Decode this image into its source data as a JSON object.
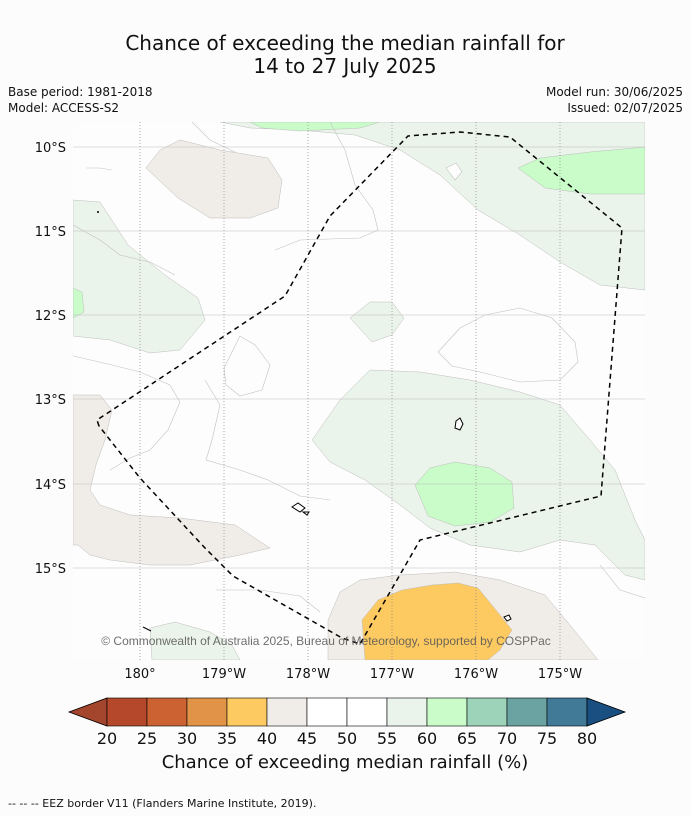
{
  "title_line1": "Chance of exceeding the median rainfall for",
  "title_line2": "14 to 27 July 2025",
  "base_period": "Base period: 1981-2018",
  "model": "Model: ACCESS-S2",
  "model_run": "Model run: 30/06/2025",
  "issued": "Issued: 02/07/2025",
  "lat_labels": [
    "10°S",
    "11°S",
    "12°S",
    "13°S",
    "14°S",
    "15°S"
  ],
  "lon_labels": [
    "180°",
    "179°W",
    "178°W",
    "177°W",
    "176°W",
    "175°W"
  ],
  "copyright": "© Commonwealth of Australia 2025, Bureau of Meteorology, supported by COSPPac",
  "colorbar": {
    "title": "Chance of exceeding median rainfall (%)",
    "ticks": [
      "20",
      "25",
      "30",
      "35",
      "40",
      "45",
      "50",
      "55",
      "60",
      "65",
      "70",
      "75",
      "80"
    ],
    "colors": [
      "#a4452d",
      "#b5482a",
      "#cc6232",
      "#e19447",
      "#fdc961",
      "#f0ece7",
      "#ffffff",
      "#ffffff",
      "#eaf4ea",
      "#c9fcc8",
      "#9dd3b9",
      "#6ba3a3",
      "#417a97",
      "#1a4f82"
    ]
  },
  "footer": "--  --  -- EEZ border V11 (Flanders Marine Institute, 2019)."
}
